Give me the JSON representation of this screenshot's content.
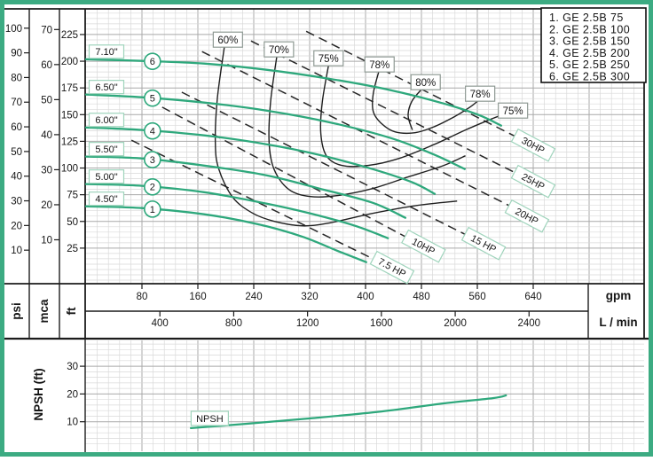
{
  "figure": {
    "border_color": "#3cab82",
    "curve_color": "#2ea87c",
    "label_box_border": "#9fd4bc",
    "eff_box_border": "#8f9a94",
    "grid_minor": "#d9d9d9",
    "grid_major": "#a9a9a9",
    "line_color": "#1c1c1c"
  },
  "legend": {
    "items": [
      "1.  GE  2.5B  75",
      "2.  GE  2.5B  100",
      "3.  GE  2.5B  150",
      "4.  GE  2.5B  200",
      "5.  GE  2.5B  250",
      "6.  GE  2.5B  300"
    ]
  },
  "axes": {
    "head": {
      "psi": {
        "unit": "psi",
        "ticks": [
          10,
          20,
          30,
          40,
          50,
          60,
          70,
          80,
          90,
          100
        ]
      },
      "mca": {
        "unit": "mca",
        "ticks": [
          10,
          20,
          30,
          40,
          50,
          60,
          70
        ]
      },
      "ft": {
        "unit": "ft",
        "ticks": [
          25,
          50,
          75,
          100,
          125,
          150,
          175,
          200,
          225
        ]
      }
    },
    "flow": {
      "gpm": {
        "unit": "gpm",
        "ticks": [
          80,
          160,
          240,
          320,
          400,
          480,
          560,
          640
        ]
      },
      "lmin": {
        "unit": "L / min",
        "ticks": [
          400,
          800,
          1200,
          1600,
          2000,
          2400
        ]
      }
    },
    "npsh": {
      "label": "NPSH (ft)",
      "ticks": [
        10,
        20,
        30
      ]
    }
  },
  "chart_data": {
    "type": "line",
    "title": "GE 2.5B pump performance curves (head vs flow, efficiency and power overlays, NPSH)",
    "xlabel": "gpm",
    "ylabel": "ft",
    "x_range_gpm": [
      0,
      800
    ],
    "y_range_ft": [
      0,
      250
    ],
    "grid": "on",
    "pump_curves": [
      {
        "n": "1",
        "model": "GE 2.5B 75",
        "impeller": "4.50\"",
        "points": [
          [
            0,
            64.2
          ],
          [
            80,
            62.5
          ],
          [
            169,
            56.7
          ],
          [
            245,
            47.6
          ],
          [
            309,
            35.9
          ],
          [
            359,
            22.7
          ],
          [
            401,
            11.9
          ]
        ]
      },
      {
        "n": "2",
        "model": "GE 2.5B 100",
        "impeller": "5.00\"",
        "points": [
          [
            0,
            85
          ],
          [
            80,
            83.3
          ],
          [
            169,
            77.4
          ],
          [
            258,
            66.7
          ],
          [
            321,
            57.5
          ],
          [
            385,
            45.9
          ],
          [
            432,
            34.3
          ]
        ]
      },
      {
        "n": "3",
        "model": "GE 2.5B 150",
        "impeller": "5.50\"",
        "points": [
          [
            0,
            110.7
          ],
          [
            80,
            109
          ],
          [
            169,
            102.3
          ],
          [
            258,
            93.2
          ],
          [
            334,
            80.8
          ],
          [
            410,
            67.5
          ],
          [
            457,
            53.4
          ]
        ]
      },
      {
        "n": "4",
        "model": "GE 2.5B 200",
        "impeller": "6.00\"",
        "points": [
          [
            0,
            138
          ],
          [
            80,
            135.6
          ],
          [
            169,
            130.6
          ],
          [
            258,
            122.3
          ],
          [
            334,
            112.3
          ],
          [
            410,
            99
          ],
          [
            467,
            86.6
          ],
          [
            499,
            75.8
          ]
        ]
      },
      {
        "n": "5",
        "model": "GE 2.5B 250",
        "impeller": "6.50\"",
        "points": [
          [
            0,
            168.8
          ],
          [
            80,
            166.3
          ],
          [
            169,
            161.3
          ],
          [
            258,
            153.8
          ],
          [
            347,
            143
          ],
          [
            436,
            128.1
          ],
          [
            499,
            112.3
          ],
          [
            542,
            99
          ]
        ]
      },
      {
        "n": "6",
        "model": "GE 2.5B 300",
        "impeller": "7.10\"",
        "points": [
          [
            0,
            201.9
          ],
          [
            80,
            200.3
          ],
          [
            169,
            197.8
          ],
          [
            258,
            192
          ],
          [
            347,
            183.7
          ],
          [
            436,
            172.9
          ],
          [
            512,
            160.4
          ],
          [
            562,
            149.7
          ],
          [
            594,
            139.7
          ]
        ]
      }
    ],
    "efficiency_contours": [
      {
        "label": "60%",
        "label_at": [
          203,
          220.2
        ],
        "points": [
          [
            198,
            213.6
          ],
          [
            188,
            165.5
          ],
          [
            185,
            124
          ],
          [
            190,
            99
          ],
          [
            210,
            72.5
          ],
          [
            239,
            57.5
          ],
          [
            270,
            50
          ],
          [
            309,
            45.9
          ],
          [
            347,
            48.4
          ],
          [
            410,
            57.5
          ],
          [
            474,
            65
          ],
          [
            531,
            69.1
          ]
        ]
      },
      {
        "label": "70%",
        "label_at": [
          276,
          211.1
        ],
        "points": [
          [
            273,
            204.5
          ],
          [
            264,
            161.3
          ],
          [
            262,
            124
          ],
          [
            269,
            99
          ],
          [
            290,
            80
          ],
          [
            321,
            73.3
          ],
          [
            359,
            74.1
          ],
          [
            410,
            80.8
          ],
          [
            461,
            91.6
          ],
          [
            512,
            102.4
          ],
          [
            543,
            111.5
          ]
        ]
      },
      {
        "label": "75%",
        "label_at": [
          347,
          202.8
        ],
        "label2_at": [
          611,
          153.8
        ],
        "points": [
          [
            347,
            196.2
          ],
          [
            338,
            161.3
          ],
          [
            336,
            132.3
          ],
          [
            344,
            111.5
          ],
          [
            366,
            102.4
          ],
          [
            404,
            102.4
          ],
          [
            448,
            109
          ],
          [
            499,
            122.3
          ],
          [
            543,
            135.6
          ],
          [
            582,
            146.4
          ],
          [
            606,
            152.2
          ]
        ]
      },
      {
        "label": "78%",
        "label_at": [
          420,
          197
        ],
        "label2_at": [
          564,
          169.6
        ],
        "points": [
          [
            419,
            190.4
          ],
          [
            411,
            169.6
          ],
          [
            411,
            153
          ],
          [
            422,
            142.2
          ],
          [
            442,
            133.9
          ],
          [
            471,
            133.1
          ],
          [
            499,
            138.9
          ],
          [
            527,
            148
          ],
          [
            550,
            157.2
          ],
          [
            561,
            163
          ]
        ]
      },
      {
        "label": "80%",
        "label_at": [
          486,
          180.4
        ],
        "points": [
          [
            479,
            172.9
          ],
          [
            466,
            162.1
          ],
          [
            461,
            148.9
          ],
          [
            467,
            135.6
          ]
        ]
      }
    ],
    "power_lines": [
      {
        "label": "7.5 HP",
        "from": [
          65,
          126
        ],
        "to": [
          451,
          2
        ],
        "label_at": [
          438,
          6.9
        ],
        "rot": 28
      },
      {
        "label": "10HP",
        "from": [
          109,
          157
        ],
        "to": [
          505,
          19
        ],
        "label_at": [
          483,
          26.8
        ],
        "rot": 28
      },
      {
        "label": "15 HP",
        "from": [
          137,
          171
        ],
        "to": [
          588,
          23
        ],
        "label_at": [
          569,
          29.3
        ],
        "rot": 28
      },
      {
        "label": "20HP",
        "from": [
          166,
          209
        ],
        "to": [
          654,
          49
        ],
        "label_at": [
          631,
          55
        ],
        "rot": 28
      },
      {
        "label": "25HP",
        "from": [
          236,
          219
        ],
        "to": [
          662,
          80
        ],
        "label_at": [
          640,
          87.4
        ],
        "rot": 28
      },
      {
        "label": "30HP",
        "from": [
          315,
          228
        ],
        "to": [
          662,
          114
        ],
        "label_at": [
          640,
          121.4
        ],
        "rot": 28
      }
    ],
    "npsh_curve": {
      "label": "NPSH",
      "label_at": [
        177,
        11.2
      ],
      "points": [
        [
          150,
          7.7
        ],
        [
          232,
          9.3
        ],
        [
          321,
          11.2
        ],
        [
          423,
          13.7
        ],
        [
          512,
          16.6
        ],
        [
          582,
          18.5
        ],
        [
          601,
          19.5
        ]
      ]
    }
  }
}
